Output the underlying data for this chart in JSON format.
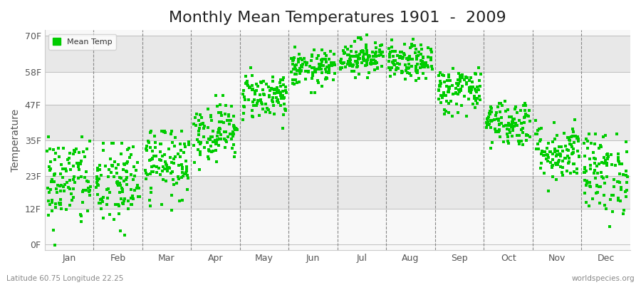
{
  "title": "Monthly Mean Temperatures 1901  -  2009",
  "ylabel": "Temperature",
  "xlabel_labels": [
    "Jan",
    "Feb",
    "Mar",
    "Apr",
    "May",
    "Jun",
    "Jul",
    "Aug",
    "Sep",
    "Oct",
    "Nov",
    "Dec"
  ],
  "latitude_text": "Latitude 60.75 Longitude 22.25",
  "watermark": "worldspecies.org",
  "ytick_labels": [
    "0F",
    "12F",
    "23F",
    "35F",
    "47F",
    "58F",
    "70F"
  ],
  "ytick_values": [
    0,
    12,
    23,
    35,
    47,
    58,
    70
  ],
  "dot_color": "#00cc00",
  "fig_bg_color": "#ffffff",
  "plot_bg_color": "#f0f0f0",
  "band_light": "#f8f8f8",
  "band_dark": "#e8e8e8",
  "grid_color": "#aaaaaa",
  "vline_color": "#888888",
  "title_fontsize": 16,
  "label_fontsize": 10,
  "tick_fontsize": 9,
  "years": 109,
  "monthly_means_F": [
    21,
    20,
    28,
    38,
    50,
    59,
    63,
    61,
    52,
    41,
    31,
    24
  ],
  "monthly_stds_F": [
    8,
    8,
    6,
    5,
    4,
    3,
    3,
    3,
    4,
    4,
    5,
    7
  ],
  "monthly_mins_F": [
    -1,
    0,
    10,
    25,
    39,
    51,
    56,
    52,
    43,
    30,
    18,
    6
  ],
  "monthly_maxs_F": [
    36,
    34,
    38,
    50,
    61,
    69,
    71,
    69,
    61,
    51,
    42,
    37
  ]
}
